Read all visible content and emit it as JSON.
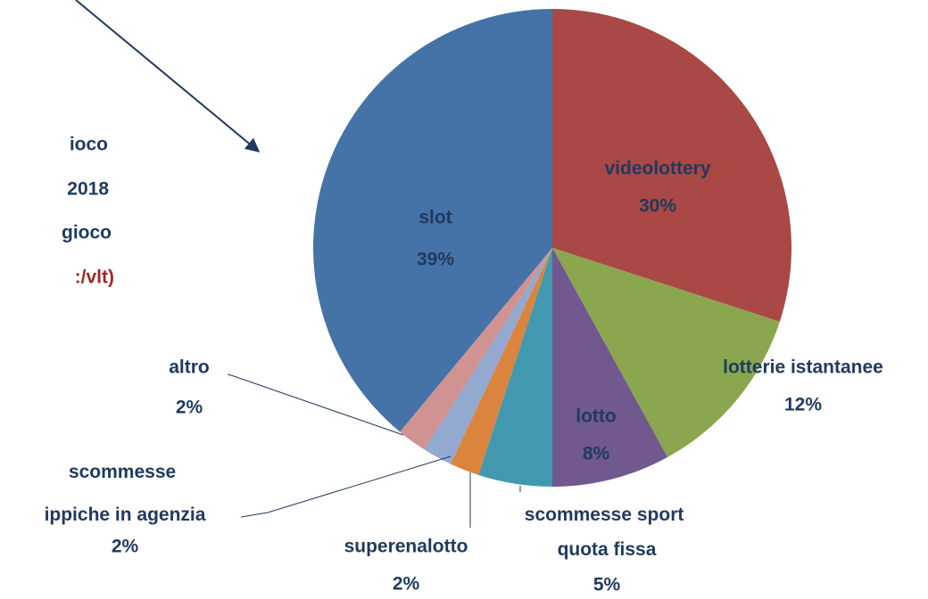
{
  "chart_data": {
    "type": "pie",
    "annotations": [
      {
        "text": "ioco",
        "color": "#1f3a5f"
      },
      {
        "text": "2018",
        "color": "#1f3a5f"
      },
      {
        "text": "gioco",
        "color": "#1f3a5f"
      },
      {
        "text": ":/vlt)",
        "color": "#a0282a"
      }
    ],
    "categories": [
      "videolottery",
      "lotterie istantanee",
      "lotto",
      "scommesse sport quota fissa",
      "superenalotto",
      "scommesse ippiche in agenzia",
      "altro",
      "slot"
    ],
    "values": [
      30,
      12,
      8,
      5,
      2,
      2,
      2,
      39
    ],
    "value_labels": [
      "30%",
      "12%",
      "8%",
      "5%",
      "2%",
      "2%",
      "2%",
      "39%"
    ],
    "colors": [
      "#a94845",
      "#8aa64e",
      "#71588f",
      "#4298af",
      "#db843d",
      "#93a9cf",
      "#d09391",
      "#4572a7"
    ]
  }
}
